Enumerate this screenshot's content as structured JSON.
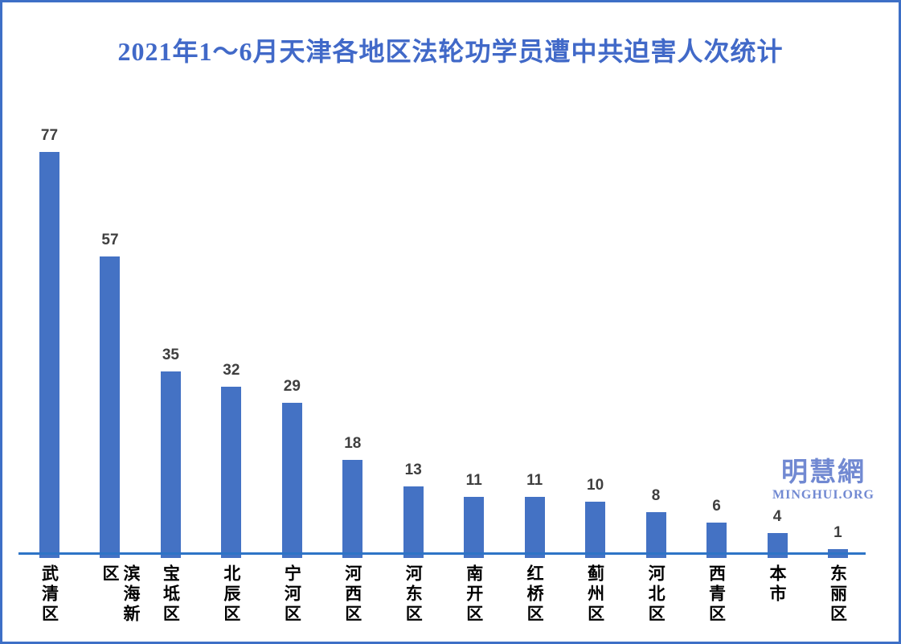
{
  "page": {
    "title": "2021年1～6月天津各地区法轮功学员遭中共迫害人次统计"
  },
  "watermark": {
    "cjk": "明慧網",
    "latin": "MINGHUI.ORG"
  },
  "colors": {
    "bar": "#4472C4",
    "axis": "#2E74C6",
    "border": "#3D6FC6",
    "title": "#4169C8",
    "value_label": "#3F3F3F",
    "category_label": "#000000",
    "watermark": "#7189D2"
  },
  "chart_data": {
    "type": "bar",
    "title": "2021年1～6月天津各地区法轮功学员遭中共迫害人次统计",
    "categories": [
      "武清区",
      "滨海新区",
      "宝坻区",
      "北辰区",
      "宁河区",
      "河西区",
      "河东区",
      "南开区",
      "红桥区",
      "蓟州区",
      "河北区",
      "西青区",
      "本市",
      "东丽区"
    ],
    "values": [
      77,
      57,
      35,
      32,
      29,
      18,
      13,
      11,
      11,
      10,
      8,
      6,
      4,
      1
    ],
    "xlabel": "",
    "ylabel": "",
    "ylim": [
      0,
      80
    ],
    "grid": false,
    "legend": false,
    "bar_color": "#4472C4",
    "value_labels_shown": true,
    "category_label_orientation": "vertical"
  }
}
